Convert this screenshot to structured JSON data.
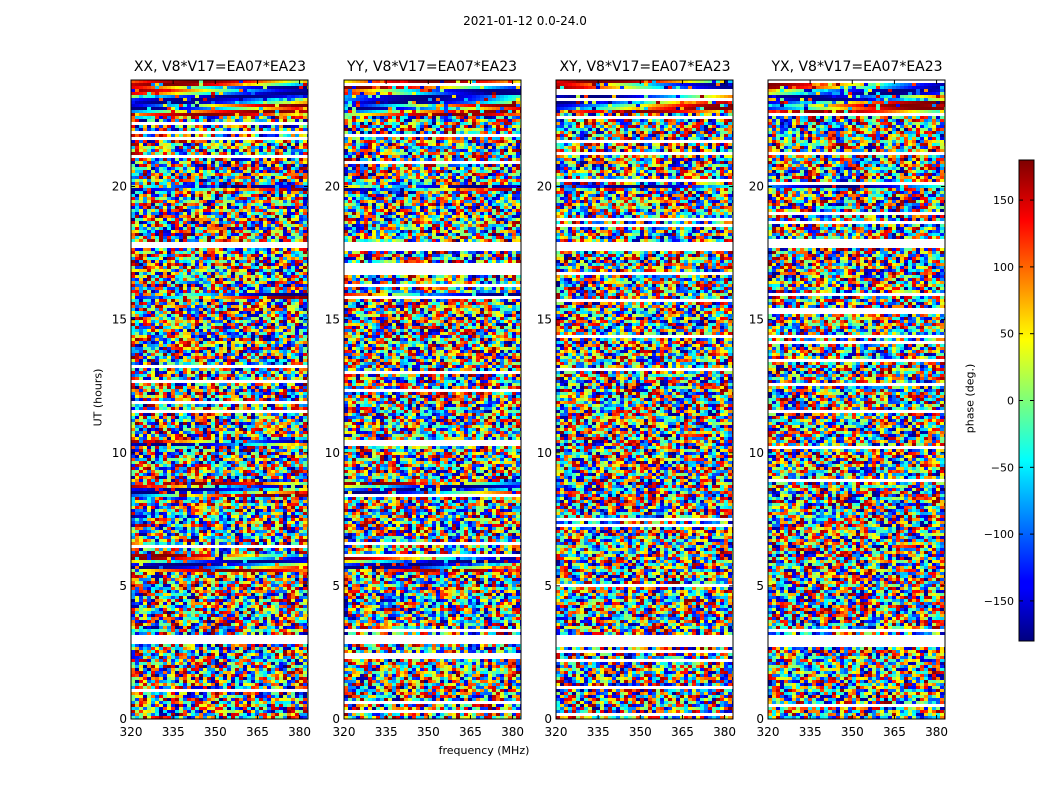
{
  "suptitle": "2021-01-12 0.0-24.0",
  "chart_data": {
    "type": "heatmap",
    "x_label": "frequency (MHz)",
    "y_label": "UT (hours)",
    "xlim": [
      320,
      383
    ],
    "ylim": [
      0,
      24
    ],
    "x_ticks": [
      320,
      335,
      350,
      365,
      380
    ],
    "y_ticks": [
      0,
      5,
      10,
      15,
      20
    ],
    "colorscale": "jet",
    "colorbar": {
      "label": "phase (deg.)",
      "range": [
        -180,
        180
      ],
      "ticks": [
        150,
        100,
        50,
        0,
        -50,
        -100,
        -150
      ],
      "tick_labels": [
        "150",
        "100",
        "50",
        "0",
        "−50",
        "−100",
        "−150"
      ]
    },
    "panels": [
      {
        "title": "XX, V8*V17=EA07*EA23",
        "coherent_bands_ut": [
          [
            22.6,
            24.0
          ],
          [
            19.8,
            20.1
          ],
          [
            15.8,
            16.0
          ],
          [
            10.2,
            10.5
          ],
          [
            8.3,
            8.9
          ],
          [
            5.5,
            6.2
          ]
        ]
      },
      {
        "title": "YY, V8*V17=EA07*EA23",
        "coherent_bands_ut": [
          [
            22.6,
            24.0
          ],
          [
            19.8,
            20.1
          ],
          [
            15.8,
            16.0
          ],
          [
            10.2,
            10.5
          ],
          [
            8.3,
            8.9
          ],
          [
            5.5,
            6.2
          ]
        ]
      },
      {
        "title": "XY, V8*V17=EA07*EA23",
        "coherent_bands_ut": [
          [
            22.8,
            24.0
          ],
          [
            19.9,
            20.1
          ]
        ]
      },
      {
        "title": "YX, V8*V17=EA07*EA23",
        "coherent_bands_ut": [
          [
            22.8,
            24.0
          ],
          [
            19.9,
            20.1
          ]
        ]
      }
    ],
    "flagged_gaps_ut": [
      [
        17.65,
        17.95
      ],
      [
        2.85,
        3.15
      ]
    ]
  }
}
